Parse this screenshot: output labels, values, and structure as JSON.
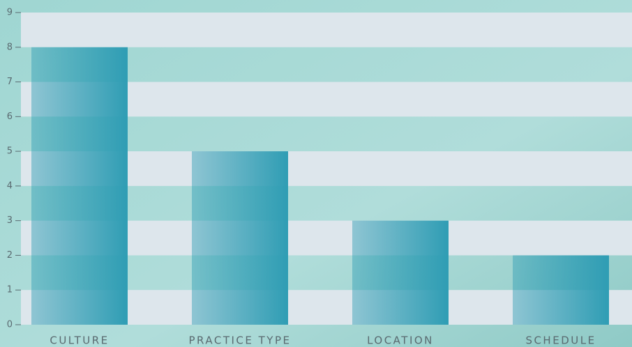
{
  "chart_data": {
    "type": "bar",
    "categories": [
      "CULTURE",
      "PRACTICE TYPE",
      "LOCATION",
      "SCHEDULE"
    ],
    "values": [
      8,
      5,
      3,
      2
    ],
    "color": "#2f9db4",
    "ylim": [
      0,
      9
    ],
    "yticks": [
      0,
      1,
      2,
      3,
      4,
      5,
      6,
      7,
      8,
      9
    ],
    "grid": true
  }
}
